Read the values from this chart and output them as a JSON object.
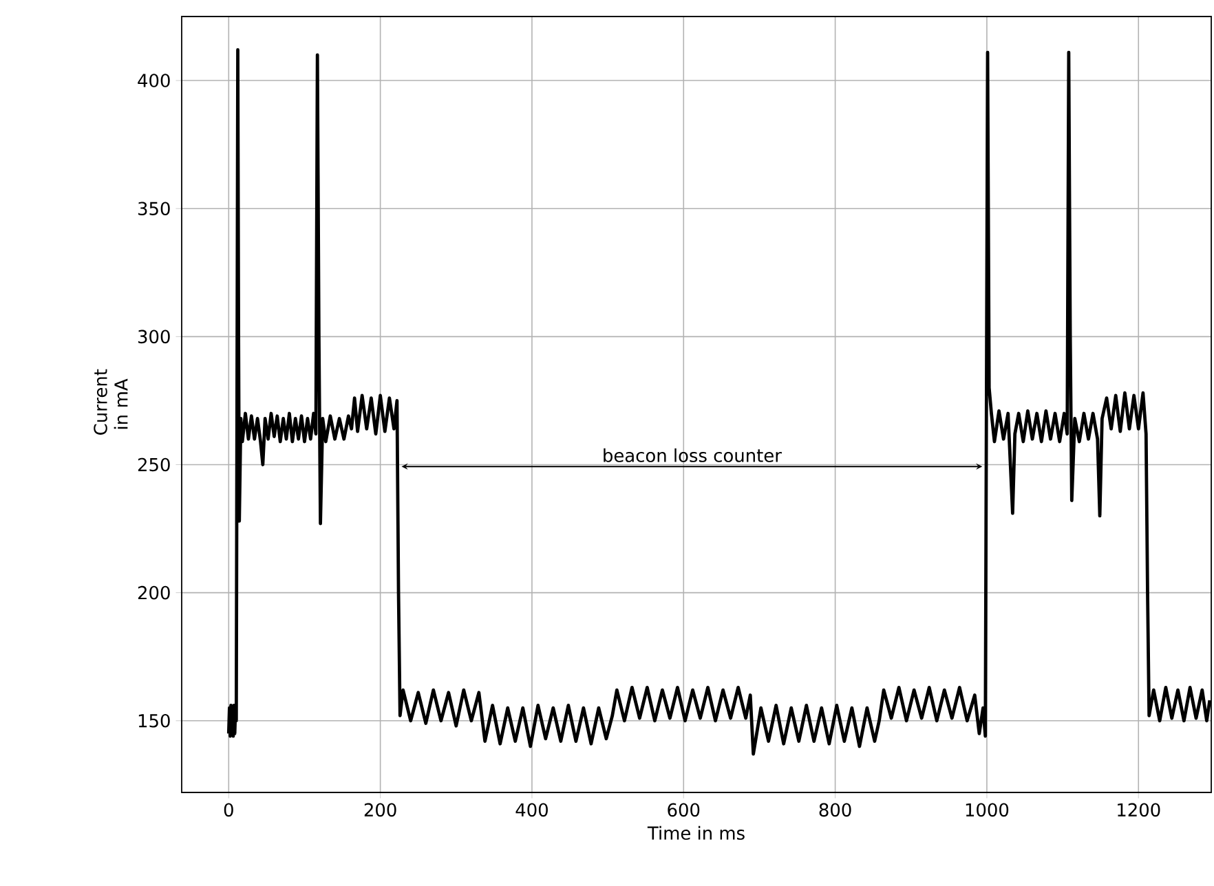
{
  "chart_data": {
    "type": "line",
    "xlabel": "Time in ms",
    "ylabel": "Current in mA",
    "xlim": [
      -62,
      1296
    ],
    "ylim": [
      122,
      425
    ],
    "xticks": [
      0,
      200,
      400,
      600,
      800,
      1000,
      1200
    ],
    "yticks": [
      150,
      200,
      250,
      300,
      350,
      400
    ],
    "grid": true,
    "marker": "none",
    "line_style": "solid",
    "annotations": [
      "beacon loss counter"
    ],
    "series": [
      {
        "color": "#000000",
        "x": [
          0,
          1,
          2,
          3,
          4,
          5,
          6,
          7,
          8,
          9,
          10,
          12,
          13,
          14,
          16,
          18,
          22,
          26,
          30,
          34,
          38,
          42,
          45,
          48,
          52,
          56,
          60,
          64,
          68,
          72,
          76,
          80,
          84,
          88,
          92,
          96,
          100,
          104,
          108,
          112,
          115,
          117,
          119,
          121,
          124,
          128,
          134,
          140,
          146,
          152,
          158,
          162,
          166,
          170,
          176,
          182,
          188,
          194,
          200,
          206,
          212,
          218,
          222,
          224,
          226,
          230,
          240,
          250,
          260,
          270,
          280,
          290,
          300,
          310,
          320,
          330,
          338,
          348,
          358,
          368,
          378,
          388,
          398,
          408,
          418,
          428,
          438,
          448,
          458,
          468,
          478,
          488,
          498,
          506,
          512,
          522,
          532,
          542,
          552,
          562,
          572,
          582,
          592,
          602,
          612,
          622,
          632,
          642,
          652,
          662,
          672,
          682,
          688,
          692,
          702,
          712,
          722,
          732,
          742,
          752,
          762,
          772,
          782,
          792,
          802,
          812,
          822,
          832,
          842,
          852,
          858,
          864,
          874,
          884,
          894,
          904,
          914,
          924,
          934,
          944,
          954,
          964,
          974,
          984,
          990,
          995,
          998,
          1001,
          1003,
          1006,
          1010,
          1016,
          1022,
          1028,
          1034,
          1037,
          1042,
          1048,
          1054,
          1060,
          1066,
          1072,
          1078,
          1084,
          1090,
          1096,
          1102,
          1106,
          1108,
          1110,
          1112,
          1116,
          1122,
          1128,
          1134,
          1140,
          1146,
          1149,
          1152,
          1158,
          1164,
          1170,
          1176,
          1182,
          1188,
          1194,
          1200,
          1206,
          1210,
          1212,
          1214,
          1220,
          1228,
          1236,
          1244,
          1252,
          1260,
          1268,
          1276,
          1284,
          1290,
          1294
        ],
        "values": [
          145,
          155,
          144,
          156,
          146,
          155,
          144,
          156,
          145,
          155,
          150,
          412,
          300,
          228,
          268,
          259,
          270,
          260,
          269,
          260,
          268,
          259,
          250,
          268,
          260,
          270,
          261,
          269,
          259,
          268,
          260,
          270,
          259,
          268,
          260,
          269,
          259,
          268,
          260,
          270,
          262,
          410,
          300,
          227,
          268,
          259,
          269,
          260,
          268,
          260,
          269,
          264,
          276,
          263,
          277,
          264,
          276,
          262,
          277,
          263,
          276,
          264,
          275,
          200,
          152,
          162,
          150,
          161,
          149,
          162,
          150,
          161,
          148,
          162,
          150,
          161,
          142,
          156,
          141,
          155,
          142,
          155,
          140,
          156,
          143,
          155,
          142,
          156,
          142,
          155,
          141,
          155,
          143,
          152,
          162,
          150,
          163,
          151,
          163,
          150,
          162,
          151,
          163,
          150,
          162,
          151,
          163,
          150,
          162,
          151,
          163,
          151,
          160,
          137,
          155,
          142,
          156,
          141,
          155,
          142,
          156,
          142,
          155,
          141,
          156,
          142,
          155,
          140,
          155,
          142,
          150,
          162,
          151,
          163,
          150,
          162,
          151,
          163,
          150,
          162,
          151,
          163,
          150,
          160,
          145,
          155,
          144,
          411,
          280,
          270,
          259,
          271,
          260,
          270,
          231,
          262,
          270,
          259,
          271,
          260,
          270,
          259,
          271,
          260,
          270,
          259,
          270,
          262,
          411,
          300,
          236,
          268,
          259,
          270,
          260,
          270,
          260,
          230,
          268,
          276,
          264,
          277,
          263,
          278,
          264,
          277,
          264,
          278,
          262,
          200,
          152,
          162,
          150,
          163,
          151,
          162,
          150,
          163,
          151,
          162,
          150,
          158
        ]
      }
    ]
  }
}
